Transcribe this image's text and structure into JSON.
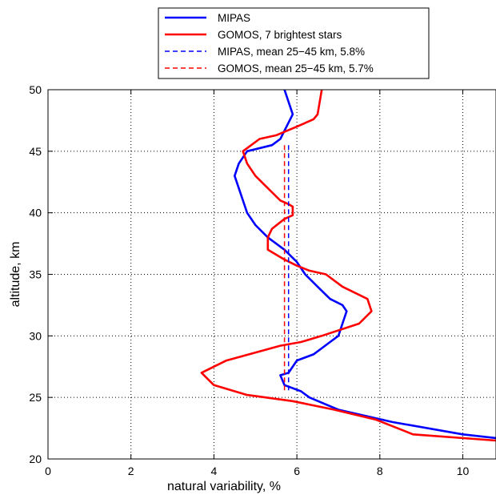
{
  "chart_data": {
    "type": "line",
    "xlabel": "natural variability, %",
    "ylabel": "altitude, km",
    "xlim": [
      0,
      10.8
    ],
    "ylim": [
      20,
      50
    ],
    "x_ticks": [
      0,
      2,
      4,
      6,
      8,
      10
    ],
    "y_ticks": [
      20,
      25,
      30,
      35,
      40,
      45,
      50
    ],
    "grid": true,
    "legend_position": "top-center",
    "series": [
      {
        "name": "MIPAS",
        "color": "#0000ff",
        "style": "solid",
        "points": [
          [
            5.7,
            50
          ],
          [
            5.9,
            48
          ],
          [
            5.6,
            46
          ],
          [
            5.4,
            45.5
          ],
          [
            4.8,
            45
          ],
          [
            4.6,
            44
          ],
          [
            4.5,
            43
          ],
          [
            4.6,
            42
          ],
          [
            4.7,
            41
          ],
          [
            4.8,
            40
          ],
          [
            5.0,
            39
          ],
          [
            5.3,
            38
          ],
          [
            5.7,
            37
          ],
          [
            6.0,
            36
          ],
          [
            6.2,
            35
          ],
          [
            6.5,
            34
          ],
          [
            6.8,
            33
          ],
          [
            7.1,
            32.5
          ],
          [
            7.2,
            32
          ],
          [
            7.1,
            31
          ],
          [
            7.0,
            30
          ],
          [
            6.8,
            29.5
          ],
          [
            6.4,
            28.5
          ],
          [
            6.0,
            28
          ],
          [
            5.8,
            27
          ],
          [
            5.6,
            26.8
          ],
          [
            5.7,
            26
          ],
          [
            6.1,
            25.5
          ],
          [
            6.3,
            25
          ],
          [
            7.0,
            24
          ],
          [
            8.3,
            23
          ],
          [
            10.0,
            22
          ],
          [
            10.8,
            21.7
          ]
        ]
      },
      {
        "name": "GOMOS, 7 brightest stars",
        "color": "#ff0000",
        "style": "solid",
        "points": [
          [
            6.6,
            50
          ],
          [
            6.5,
            48
          ],
          [
            6.4,
            47.6
          ],
          [
            6.0,
            47
          ],
          [
            5.5,
            46.3
          ],
          [
            5.1,
            46
          ],
          [
            4.7,
            45
          ],
          [
            4.8,
            44
          ],
          [
            5.0,
            43
          ],
          [
            5.3,
            42
          ],
          [
            5.6,
            41
          ],
          [
            5.8,
            40.7
          ],
          [
            5.9,
            40.5
          ],
          [
            5.9,
            39.8
          ],
          [
            5.7,
            39.5
          ],
          [
            5.4,
            38.7
          ],
          [
            5.3,
            38
          ],
          [
            5.3,
            37
          ],
          [
            5.7,
            36.2
          ],
          [
            6.0,
            35.7
          ],
          [
            6.3,
            35.3
          ],
          [
            6.7,
            35
          ],
          [
            7.1,
            34
          ],
          [
            7.7,
            33
          ],
          [
            7.8,
            32
          ],
          [
            7.5,
            31
          ],
          [
            6.6,
            30
          ],
          [
            6.1,
            29.5
          ],
          [
            5.6,
            29.2
          ],
          [
            4.3,
            28
          ],
          [
            3.7,
            27
          ],
          [
            4.0,
            26
          ],
          [
            4.8,
            25.2
          ],
          [
            5.9,
            24.7
          ],
          [
            6.9,
            24
          ],
          [
            7.9,
            23.2
          ],
          [
            8.8,
            22
          ],
          [
            10.8,
            21.5
          ]
        ]
      },
      {
        "name": "MIPAS, mean 25−45 km, 5.8%",
        "color": "#0000ff",
        "style": "dashed",
        "points": [
          [
            5.8,
            45.5
          ],
          [
            5.8,
            25.5
          ]
        ]
      },
      {
        "name": "GOMOS, mean 25−45 km, 5.7%",
        "color": "#ff0000",
        "style": "dashed",
        "points": [
          [
            5.7,
            45.5
          ],
          [
            5.7,
            25.5
          ]
        ]
      }
    ]
  }
}
